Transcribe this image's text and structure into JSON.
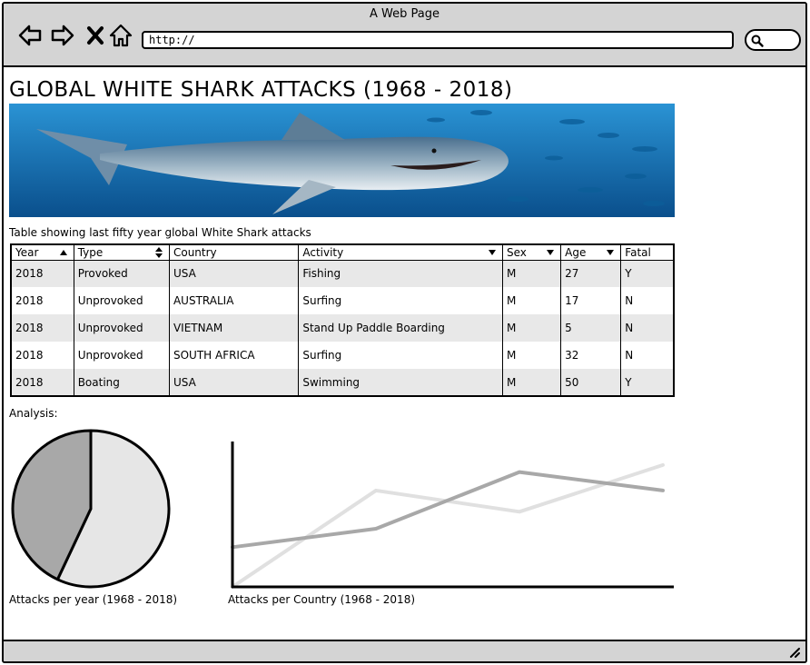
{
  "window": {
    "title": "A Web Page"
  },
  "browser": {
    "url": "http://",
    "icons": [
      "back-arrow-icon",
      "forward-arrow-icon",
      "close-x-icon",
      "home-icon",
      "search-icon"
    ]
  },
  "page": {
    "title": "GLOBAL WHITE SHARK ATTACKS (1968 - 2018)",
    "table_caption": "Table showing last fifty year global White Shark attacks",
    "analysis_label": "Analysis:",
    "pie_caption": "Attacks per year (1968 - 2018)",
    "line_caption": "Attacks per Country  (1968 - 2018)"
  },
  "table": {
    "headers": [
      "Year",
      "Type",
      "Country",
      "Activity",
      "Sex",
      "Age",
      "Fatal"
    ],
    "rows": [
      [
        "2018",
        "Provoked",
        "USA",
        "Fishing",
        "M",
        "27",
        "Y"
      ],
      [
        "2018",
        "Unprovoked",
        "AUSTRALIA",
        "Surfing",
        "M",
        "17",
        "N"
      ],
      [
        "2018",
        "Unprovoked",
        "VIETNAM",
        "Stand Up Paddle Boarding",
        "M",
        "5",
        "N"
      ],
      [
        "2018",
        "Unprovoked",
        "SOUTH AFRICA",
        "Surfing",
        "M",
        "32",
        "N"
      ],
      [
        "2018",
        "Boating",
        "USA",
        "Swimming",
        "M",
        "50",
        "Y"
      ]
    ]
  },
  "colors": {
    "chrome": "#d4d4d4",
    "row_alt": "#e8e8e8",
    "pie_dark": "#a8a8a8",
    "pie_light": "#e6e6e6",
    "line_dark": "#a8a8a8",
    "line_light": "#e0e0e0",
    "ocean": "#1a7fc0"
  },
  "chart_data": [
    {
      "type": "pie",
      "title": "Attacks per year (1968 - 2018)",
      "categories": [
        "",
        ""
      ],
      "values": [
        43,
        57
      ]
    },
    {
      "type": "line",
      "title": "Attacks per Country  (1968 - 2018)",
      "x": [
        0,
        1,
        2,
        3
      ],
      "series": [
        {
          "values": [
            0,
            68,
            53,
            86
          ]
        },
        {
          "values": [
            28,
            41,
            81,
            68
          ]
        }
      ],
      "ylim": [
        0,
        100
      ],
      "xlabel": "",
      "ylabel": ""
    }
  ]
}
